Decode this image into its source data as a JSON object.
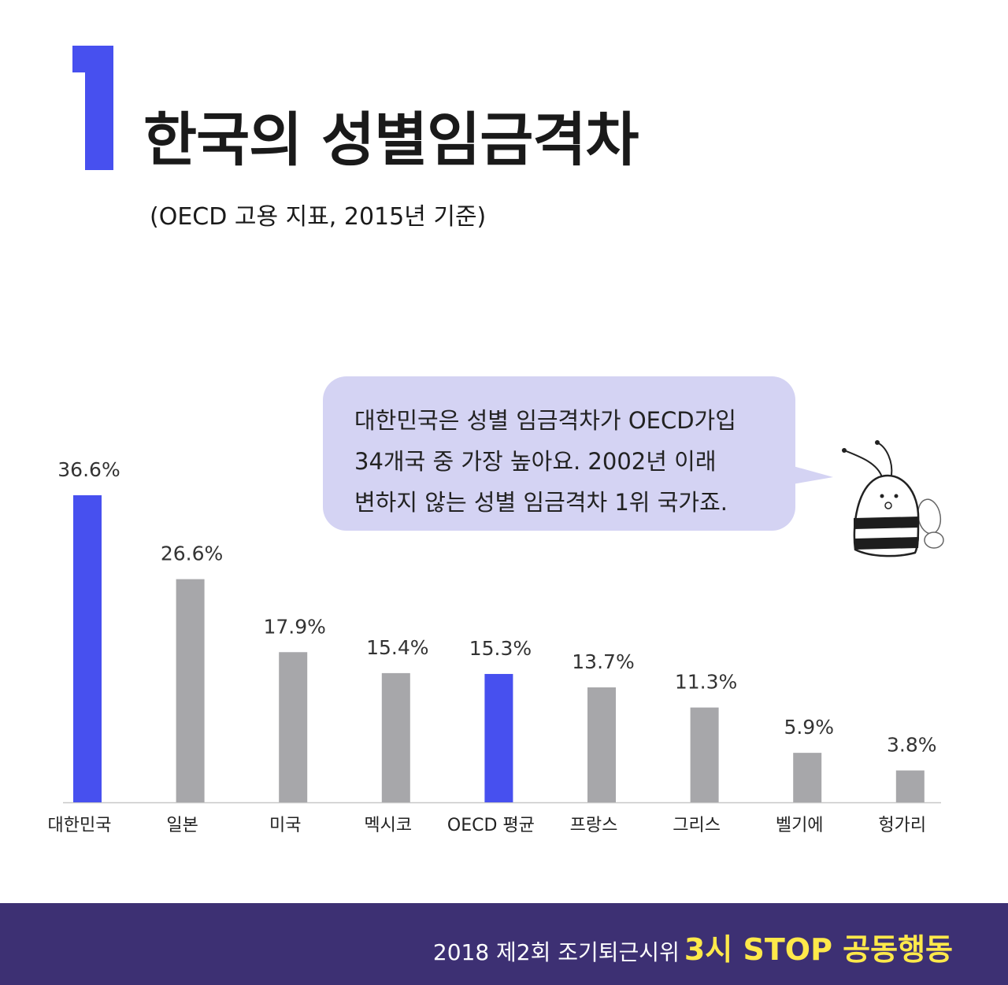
{
  "header": {
    "number": "1",
    "title": "한국의 성별임금격차",
    "subtitle": "(OECD 고용 지표, 2015년 기준)"
  },
  "callout": {
    "lines": [
      "대한민국은 성별 임금격차가 OECD가입",
      "34개국 중 가장 높아요. 2002년 이래",
      "변하지 않는 성별 임금격차 1위 국가죠."
    ]
  },
  "chart_data": {
    "type": "bar",
    "categories": [
      "대한민국",
      "일본",
      "미국",
      "멕시코",
      "OECD 평균",
      "프랑스",
      "그리스",
      "벨기에",
      "헝가리"
    ],
    "values": [
      36.6,
      26.6,
      17.9,
      15.4,
      15.3,
      13.7,
      11.3,
      5.9,
      3.8
    ],
    "value_labels": [
      "36.6%",
      "26.6%",
      "17.9%",
      "15.4%",
      "15.3%",
      "13.7%",
      "11.3%",
      "5.9%",
      "3.8%"
    ],
    "highlighted": [
      "대한민국",
      "OECD 평균"
    ],
    "ylim": [
      0,
      36.6
    ],
    "grid": false,
    "colors": {
      "highlight": "#4750ef",
      "default": "#a7a7aa",
      "axis": "#c8c8c8"
    }
  },
  "footer": {
    "text": "2018 제2회 조기퇴근시위",
    "highlight": "3시 STOP 공동행동"
  },
  "colors": {
    "accent": "#4750ef",
    "bubble": "#d4d3f3",
    "footer_bg": "#3d3073",
    "footer_highlight": "#ffe94a"
  }
}
